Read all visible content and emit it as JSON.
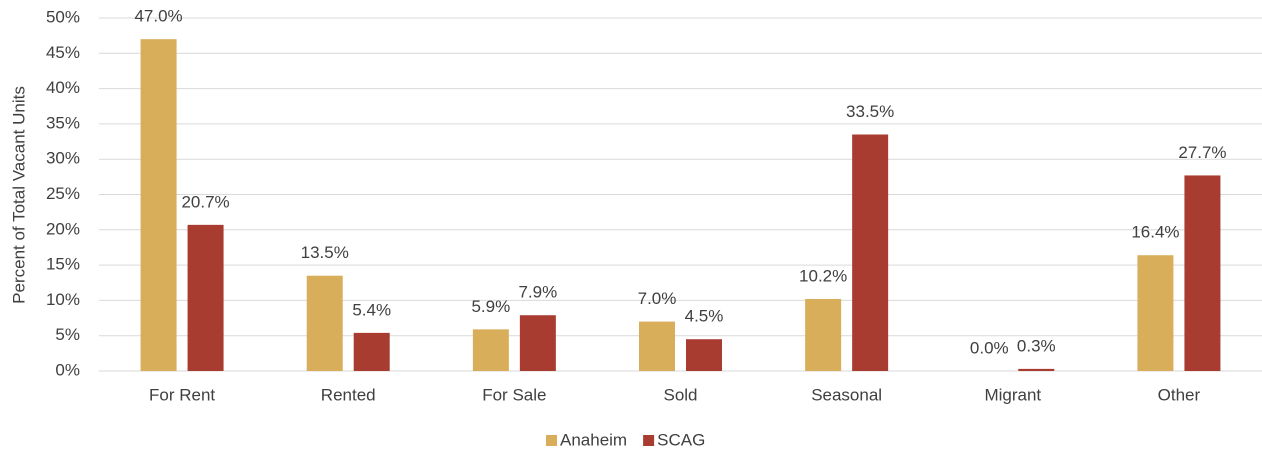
{
  "chart_data": {
    "type": "bar",
    "y_axis_label": "Percent of Total Vacant Units",
    "categories": [
      "For Rent",
      "Rented",
      "For Sale",
      "Sold",
      "Seasonal",
      "Migrant",
      "Other"
    ],
    "series": [
      {
        "name": "Anaheim",
        "color": "#d9ae5b",
        "values": [
          47.0,
          13.5,
          5.9,
          7.0,
          10.2,
          0.0,
          16.4
        ],
        "value_labels": [
          "47.0%",
          "13.5%",
          "5.9%",
          "7.0%",
          "10.2%",
          "0.0%",
          "16.4%"
        ]
      },
      {
        "name": "SCAG",
        "color": "#a93c30",
        "values": [
          20.7,
          5.4,
          7.9,
          4.5,
          33.5,
          0.3,
          27.7
        ],
        "value_labels": [
          "20.7%",
          "5.4%",
          "7.9%",
          "4.5%",
          "33.5%",
          "0.3%",
          "27.7%"
        ]
      }
    ],
    "ylim": [
      0,
      50
    ],
    "yticks": [
      {
        "value": 0,
        "label": "0%"
      },
      {
        "value": 5,
        "label": "5%"
      },
      {
        "value": 10,
        "label": "10%"
      },
      {
        "value": 15,
        "label": "15%"
      },
      {
        "value": 20,
        "label": "20%"
      },
      {
        "value": 25,
        "label": "25%"
      },
      {
        "value": 30,
        "label": "30%"
      },
      {
        "value": 35,
        "label": "35%"
      },
      {
        "value": 40,
        "label": "40%"
      },
      {
        "value": 45,
        "label": "45%"
      },
      {
        "value": 50,
        "label": "50%"
      }
    ],
    "grid": true,
    "legend": "bottom"
  }
}
